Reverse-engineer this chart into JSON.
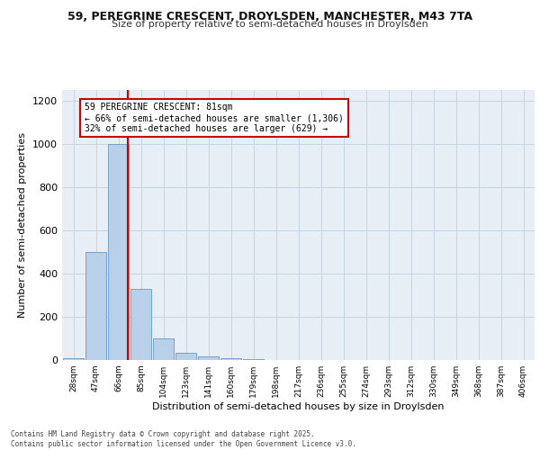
{
  "title_line1": "59, PEREGRINE CRESCENT, DROYLSDEN, MANCHESTER, M43 7TA",
  "title_line2": "Size of property relative to semi-detached houses in Droylsden",
  "xlabel": "Distribution of semi-detached houses by size in Droylsden",
  "ylabel": "Number of semi-detached properties",
  "bin_labels": [
    "28sqm",
    "47sqm",
    "66sqm",
    "85sqm",
    "104sqm",
    "123sqm",
    "141sqm",
    "160sqm",
    "179sqm",
    "198sqm",
    "217sqm",
    "236sqm",
    "255sqm",
    "274sqm",
    "293sqm",
    "312sqm",
    "330sqm",
    "349sqm",
    "368sqm",
    "387sqm",
    "406sqm"
  ],
  "bar_values": [
    10,
    500,
    1000,
    330,
    100,
    35,
    15,
    10,
    3,
    1,
    1,
    0,
    0,
    0,
    0,
    0,
    0,
    0,
    0,
    0,
    0
  ],
  "bar_color": "#b8d0e8",
  "bar_edge_color": "#6699cc",
  "grid_color": "#c8d4e0",
  "background_color": "#e8eef6",
  "red_line_color": "#cc0000",
  "red_line_x": 2.42,
  "annotation_text": "59 PEREGRINE CRESCENT: 81sqm\n← 66% of semi-detached houses are smaller (1,306)\n32% of semi-detached houses are larger (629) →",
  "annotation_box_color": "#ffffff",
  "annotation_box_edge": "#cc0000",
  "ylim": [
    0,
    1250
  ],
  "yticks": [
    0,
    200,
    400,
    600,
    800,
    1000,
    1200
  ],
  "footer_line1": "Contains HM Land Registry data © Crown copyright and database right 2025.",
  "footer_line2": "Contains public sector information licensed under the Open Government Licence v3.0."
}
